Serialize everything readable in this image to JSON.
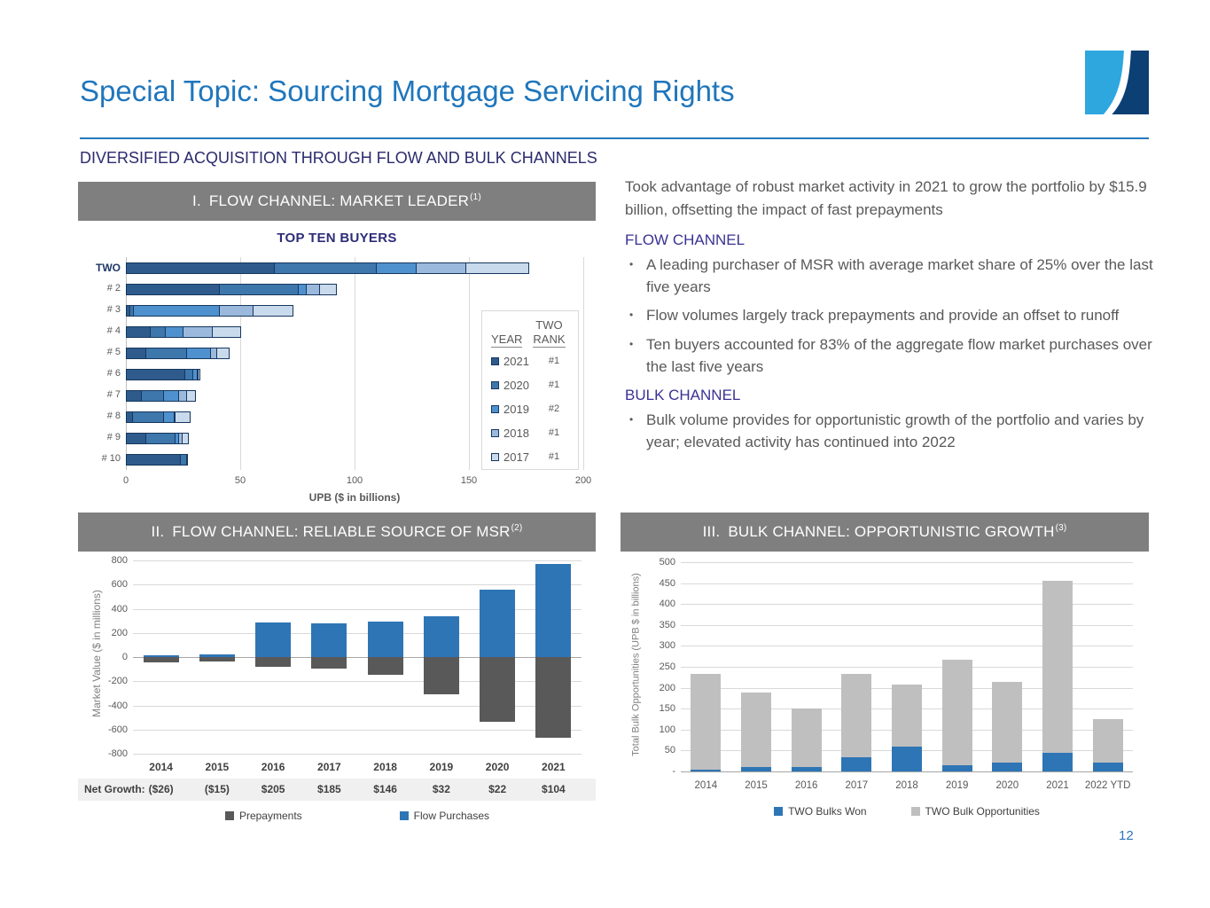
{
  "slide": {
    "title": "Special Topic: Sourcing Mortgage Servicing Rights",
    "subtitle": "DIVERSIFIED ACQUISITION THROUGH FLOW AND BULK CHANNELS",
    "page_number": "12"
  },
  "sections": {
    "one": {
      "label": "I.",
      "title": "FLOW CHANNEL: MARKET LEADER",
      "footnote": "(1)"
    },
    "two": {
      "label": "II.",
      "title": "FLOW CHANNEL: RELIABLE SOURCE OF MSR",
      "footnote": "(2)"
    },
    "three": {
      "label": "III.",
      "title": "BULK CHANNEL: OPPORTUNISTIC GROWTH",
      "footnote": "(3)"
    }
  },
  "commentary": {
    "intro": "Took advantage of robust market activity in 2021 to grow the portfolio by $15.9 billion, offsetting the impact of fast prepayments",
    "flow_header": "FLOW CHANNEL",
    "flow_bullets": [
      "A leading purchaser of MSR with average market share of 25% over the last five years",
      "Flow volumes largely track prepayments and provide an offset to runoff",
      "Ten buyers accounted for 83% of the aggregate flow market purchases over the last five years"
    ],
    "bulk_header": "BULK CHANNEL",
    "bulk_bullets": [
      "Bulk volume provides for opportunistic growth of the portfolio and varies by year; elevated activity has continued into 2022"
    ]
  },
  "colors": {
    "accent_blue": "#1F76BC",
    "header_gray": "#7F7F7F",
    "indigo": "#3A3293",
    "text_gray": "#595959",
    "logo_light_blue": "#2EA7DF",
    "logo_dark_blue": "#0C3F73"
  },
  "chart_data": [
    {
      "id": "top-ten-buyers",
      "type": "bar",
      "orientation": "horizontal",
      "stacked": true,
      "title": "TOP TEN BUYERS",
      "xlabel": "UPB ($ in billions)",
      "xlim": [
        0,
        200
      ],
      "xticks": [
        0,
        50,
        100,
        150,
        200
      ],
      "grid": true,
      "categories": [
        "TWO",
        "# 2",
        "# 3",
        "# 4",
        "# 5",
        "# 6",
        "# 7",
        "# 8",
        "# 9",
        "# 10"
      ],
      "series": [
        {
          "name": "2021",
          "two_rank": "#1",
          "color": "#2E5B8C",
          "values": [
            65,
            41,
            2,
            11,
            9,
            26,
            7,
            3,
            9,
            24
          ]
        },
        {
          "name": "2020",
          "two_rank": "#1",
          "color": "#3D77AC",
          "values": [
            45,
            35,
            2,
            7,
            18,
            4,
            10,
            14,
            13,
            3
          ]
        },
        {
          "name": "2019",
          "two_rank": "#2",
          "color": "#4E91CE",
          "values": [
            18,
            4,
            38,
            8,
            11,
            2,
            7,
            5,
            2,
            1
          ]
        },
        {
          "name": "2018",
          "two_rank": "#1",
          "color": "#9BB9DC",
          "values": [
            22,
            6,
            15,
            13,
            3,
            1,
            4,
            1,
            2,
            0
          ]
        },
        {
          "name": "2017",
          "two_rank": "#1",
          "color": "#C9DAEC",
          "values": [
            28,
            8,
            18,
            13,
            6,
            1,
            4,
            7,
            3,
            0
          ]
        }
      ],
      "legend": {
        "position": "right",
        "year_header": "YEAR",
        "rank_header_line1": "TWO",
        "rank_header_line2": "RANK"
      }
    },
    {
      "id": "flow-channel-reliable-source",
      "type": "bar",
      "orientation": "vertical",
      "stacked": true,
      "title": "",
      "ylabel": "Market Value ($ in millions)",
      "ylim": [
        -800,
        800
      ],
      "ytick_step": 200,
      "grid": true,
      "categories": [
        "2014",
        "2015",
        "2016",
        "2017",
        "2018",
        "2019",
        "2020",
        "2021"
      ],
      "series": [
        {
          "name": "Flow Purchases",
          "color": "#2E75B6",
          "values": [
            15,
            25,
            283,
            281,
            292,
            340,
            560,
            770
          ]
        },
        {
          "name": "Prepayments",
          "color": "#595959",
          "values": [
            -41,
            -40,
            -78,
            -96,
            -146,
            -308,
            -538,
            -666
          ]
        }
      ],
      "legend_order": [
        "Prepayments",
        "Flow Purchases"
      ],
      "net_growth": {
        "label": "Net Growth:",
        "values": [
          "($26)",
          "($15)",
          "$205",
          "$185",
          "$146",
          "$32",
          "$22",
          "$104"
        ]
      }
    },
    {
      "id": "bulk-channel-opportunistic-growth",
      "type": "bar",
      "orientation": "vertical",
      "stacked": true,
      "title": "",
      "ylabel": "Total Bulk Opportunities (UPB $ in billions)",
      "ylim": [
        0,
        500
      ],
      "ytick_step": 50,
      "zero_tick_label": "-",
      "grid": true,
      "categories": [
        "2014",
        "2015",
        "2016",
        "2017",
        "2018",
        "2019",
        "2020",
        "2021",
        "2022 YTD"
      ],
      "series": [
        {
          "name": "TWO Bulks Won",
          "color": "#2E75B6",
          "values": [
            5,
            10,
            11,
            33,
            60,
            15,
            22,
            45,
            21
          ]
        },
        {
          "name": "TWO Bulk Opportunities",
          "color": "#BFBFBF",
          "values": [
            227,
            179,
            139,
            200,
            148,
            251,
            193,
            411,
            105
          ]
        }
      ],
      "legend_order": [
        "TWO Bulks Won",
        "TWO Bulk Opportunities"
      ]
    }
  ]
}
